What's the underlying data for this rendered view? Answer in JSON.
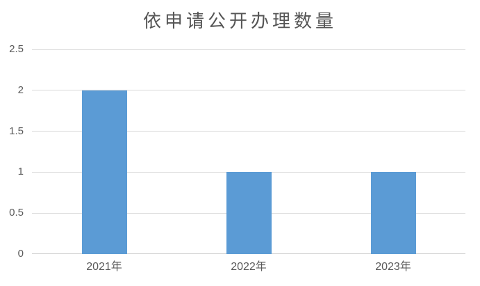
{
  "chart_data": {
    "type": "bar",
    "title": "依申请公开办理数量",
    "categories": [
      "2021年",
      "2022年",
      "2023年"
    ],
    "values": [
      2,
      1,
      1
    ],
    "xlabel": "",
    "ylabel": "",
    "ylim": [
      0,
      2.5
    ],
    "ytick_step": 0.5,
    "yticks": [
      "0",
      "0.5",
      "1",
      "1.5",
      "2",
      "2.5"
    ],
    "grid": true,
    "legend": false,
    "colors": {
      "bar": "#5b9bd5",
      "gridline": "#d9d9d9",
      "axis_line": "#d6d6d6",
      "tick_label": "#595959",
      "title": "#555555"
    }
  }
}
